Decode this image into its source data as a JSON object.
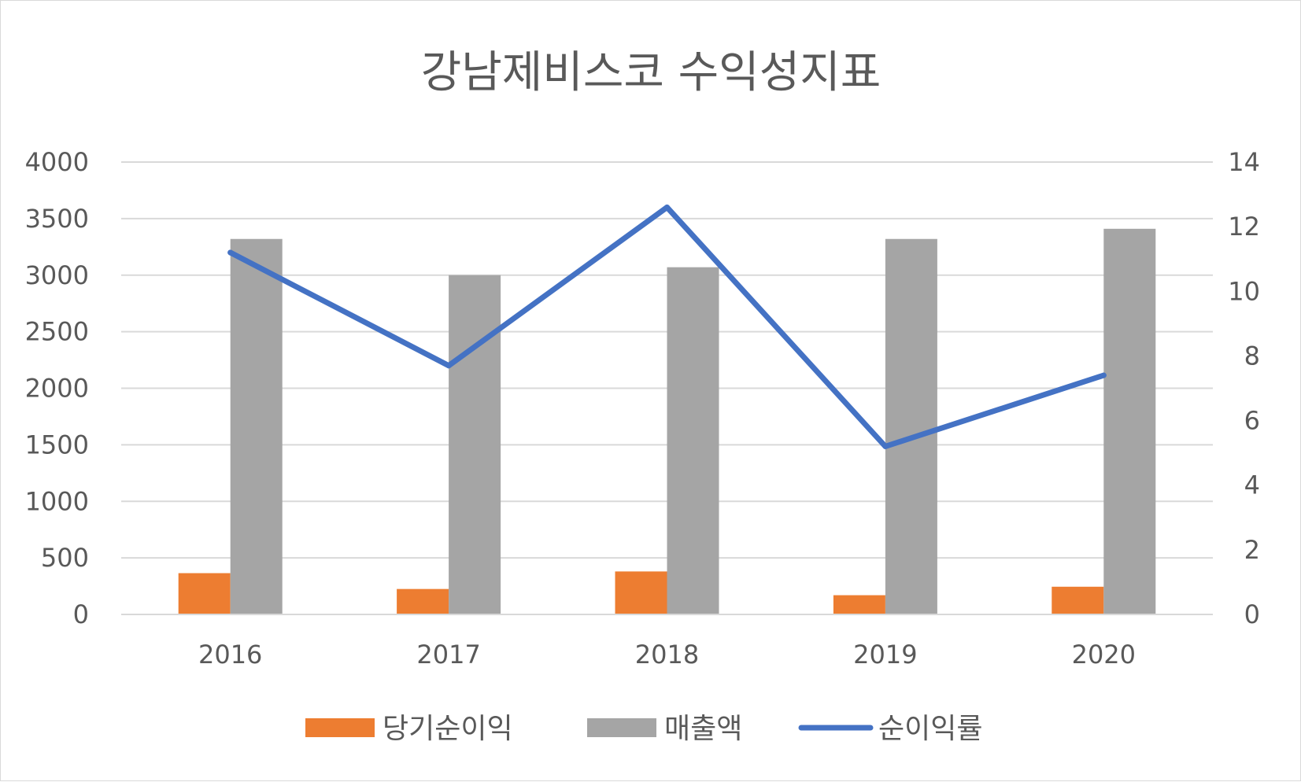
{
  "chart_data": {
    "type": "bar",
    "title": "강남제비스코 수익성지표",
    "categories": [
      "2016",
      "2017",
      "2018",
      "2019",
      "2020"
    ],
    "series": [
      {
        "name": "당기순이익",
        "type": "bar",
        "axis": "left",
        "color": "#ED7D31",
        "values": [
          365,
          225,
          380,
          170,
          245
        ]
      },
      {
        "name": "매출액",
        "type": "bar",
        "axis": "left",
        "color": "#A5A5A5",
        "values": [
          3320,
          3000,
          3070,
          3320,
          3410
        ]
      },
      {
        "name": "순이익률",
        "type": "line",
        "axis": "right",
        "color": "#4472C4",
        "values": [
          11.2,
          7.7,
          12.6,
          5.2,
          7.4
        ]
      }
    ],
    "y_left": {
      "min": 0,
      "max": 4000,
      "ticks": [
        "0",
        "500",
        "1000",
        "1500",
        "2000",
        "2500",
        "3000",
        "3500",
        "4000"
      ]
    },
    "y_right": {
      "min": 0,
      "max": 14,
      "ticks": [
        "0",
        "2",
        "4",
        "6",
        "8",
        "10",
        "12",
        "14"
      ]
    },
    "grid": true,
    "legend_position": "bottom",
    "gridline_color": "#d9d9d9",
    "text_color": "#595959"
  }
}
